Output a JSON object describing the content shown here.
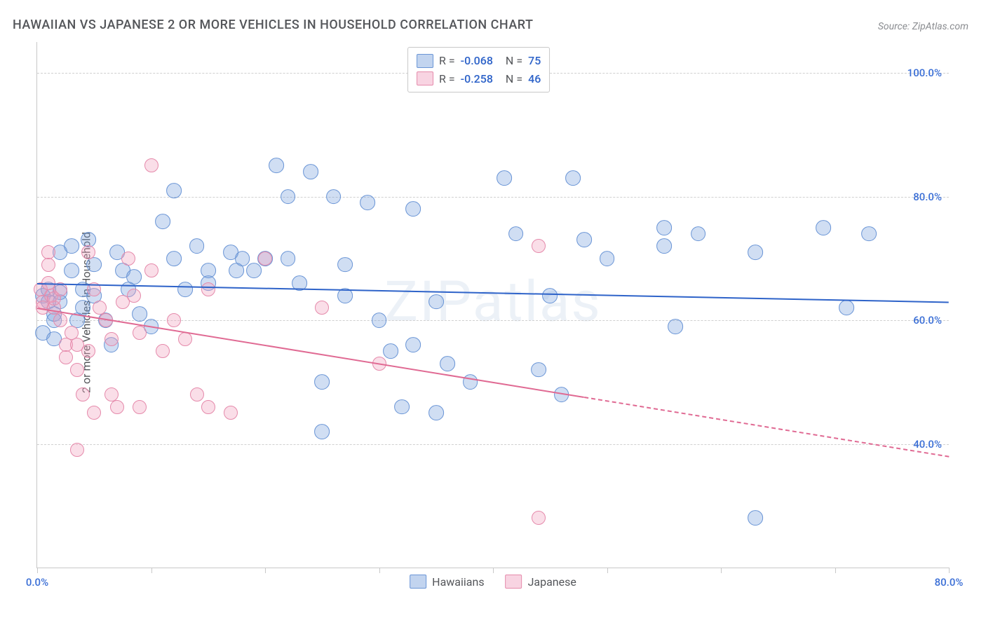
{
  "title": "HAWAIIAN VS JAPANESE 2 OR MORE VEHICLES IN HOUSEHOLD CORRELATION CHART",
  "source": "Source: ZipAtlas.com",
  "ylabel": "2 or more Vehicles in Household",
  "watermark": "ZIPatlas",
  "chart": {
    "type": "scatter",
    "xlim": [
      0,
      80
    ],
    "ylim": [
      20,
      105
    ],
    "yticks": [
      40.0,
      60.0,
      80.0,
      100.0
    ],
    "ytick_labels": [
      "40.0%",
      "60.0%",
      "80.0%",
      "100.0%"
    ],
    "xtick_positions": [
      0,
      10,
      20,
      30,
      40,
      50,
      60,
      70,
      80
    ],
    "xtick_labels": {
      "0": "0.0%",
      "80": "80.0%"
    },
    "grid_color": "#d0d0d0",
    "background_color": "#ffffff",
    "axis_color": "#c8c8c8",
    "tick_label_color": "#3b6fd6",
    "label_color": "#54565a",
    "title_fontsize": 18,
    "label_fontsize": 16,
    "tick_fontsize": 15,
    "marker_radius": 9,
    "series": {
      "blue": {
        "label": "Hawaiians",
        "fill": "rgba(120,160,220,0.35)",
        "stroke": "#6a95d6",
        "R": "-0.068",
        "N": "75",
        "trend": {
          "x1": 0,
          "y1": 66,
          "x2": 80,
          "y2": 63,
          "color": "#2e63c9",
          "width": 2,
          "dash_after_x": null
        },
        "points": [
          [
            0.5,
            58
          ],
          [
            0.5,
            64
          ],
          [
            1,
            63
          ],
          [
            1,
            65
          ],
          [
            1.5,
            61
          ],
          [
            1.5,
            60
          ],
          [
            1.5,
            57
          ],
          [
            2,
            71
          ],
          [
            2,
            63
          ],
          [
            2,
            64.5
          ],
          [
            3,
            68
          ],
          [
            3,
            72
          ],
          [
            3.5,
            60
          ],
          [
            4,
            65
          ],
          [
            4,
            62
          ],
          [
            4.5,
            73
          ],
          [
            5,
            69
          ],
          [
            5,
            64
          ],
          [
            6,
            60
          ],
          [
            6.5,
            56
          ],
          [
            7,
            71
          ],
          [
            7.5,
            68
          ],
          [
            8,
            65
          ],
          [
            8.5,
            67
          ],
          [
            9,
            61
          ],
          [
            10,
            59
          ],
          [
            11,
            76
          ],
          [
            12,
            70
          ],
          [
            12,
            81
          ],
          [
            13,
            65
          ],
          [
            14,
            72
          ],
          [
            15,
            68
          ],
          [
            15,
            66
          ],
          [
            17,
            71
          ],
          [
            17.5,
            68
          ],
          [
            18,
            70
          ],
          [
            19,
            68
          ],
          [
            20,
            70
          ],
          [
            21,
            85
          ],
          [
            22,
            80
          ],
          [
            22,
            70
          ],
          [
            23,
            66
          ],
          [
            24,
            84
          ],
          [
            25,
            50
          ],
          [
            25,
            42
          ],
          [
            26,
            80
          ],
          [
            27,
            64
          ],
          [
            27,
            69
          ],
          [
            29,
            79
          ],
          [
            30,
            60
          ],
          [
            31,
            55
          ],
          [
            32,
            46
          ],
          [
            33,
            78
          ],
          [
            33,
            56
          ],
          [
            35,
            63
          ],
          [
            35,
            45
          ],
          [
            36,
            53
          ],
          [
            38,
            50
          ],
          [
            41,
            83
          ],
          [
            42,
            74
          ],
          [
            44,
            52
          ],
          [
            45,
            64
          ],
          [
            46,
            48
          ],
          [
            47,
            83
          ],
          [
            48,
            73
          ],
          [
            50,
            70
          ],
          [
            55,
            72
          ],
          [
            55,
            75
          ],
          [
            56,
            59
          ],
          [
            58,
            74
          ],
          [
            63,
            71
          ],
          [
            63,
            28
          ],
          [
            69,
            75
          ],
          [
            71,
            62
          ],
          [
            73,
            74
          ]
        ]
      },
      "pink": {
        "label": "Japanese",
        "fill": "rgba(240,160,190,0.35)",
        "stroke": "#e58aab",
        "R": "-0.258",
        "N": "46",
        "trend": {
          "x1": 0,
          "y1": 62,
          "x2": 80,
          "y2": 38,
          "color": "#e06a93",
          "width": 2,
          "dash_after_x": 48
        },
        "points": [
          [
            0.3,
            65
          ],
          [
            0.5,
            63
          ],
          [
            0.5,
            62
          ],
          [
            1,
            71
          ],
          [
            1,
            69
          ],
          [
            1,
            66
          ],
          [
            1.2,
            64
          ],
          [
            1.5,
            62
          ],
          [
            1.5,
            63.5
          ],
          [
            2,
            65
          ],
          [
            2,
            60
          ],
          [
            2.5,
            56
          ],
          [
            2.5,
            54
          ],
          [
            3,
            58
          ],
          [
            3.5,
            56
          ],
          [
            3.5,
            52
          ],
          [
            3.5,
            39
          ],
          [
            4,
            48
          ],
          [
            4.5,
            71
          ],
          [
            4.5,
            55
          ],
          [
            5,
            45
          ],
          [
            5,
            65
          ],
          [
            5.5,
            62
          ],
          [
            6,
            60
          ],
          [
            6.5,
            57
          ],
          [
            6.5,
            48
          ],
          [
            7,
            46
          ],
          [
            7.5,
            63
          ],
          [
            8,
            70
          ],
          [
            8.5,
            64
          ],
          [
            9,
            58
          ],
          [
            9,
            46
          ],
          [
            10,
            68
          ],
          [
            10,
            85
          ],
          [
            11,
            55
          ],
          [
            12,
            60
          ],
          [
            13,
            57
          ],
          [
            14,
            48
          ],
          [
            15,
            46
          ],
          [
            15,
            65
          ],
          [
            17,
            45
          ],
          [
            20,
            70
          ],
          [
            25,
            62
          ],
          [
            30,
            53
          ],
          [
            44,
            72
          ],
          [
            44,
            28
          ]
        ]
      }
    },
    "legend_top": {
      "R_label": "R =",
      "N_label": "N ="
    },
    "legend_bottom": [
      "Hawaiians",
      "Japanese"
    ]
  }
}
